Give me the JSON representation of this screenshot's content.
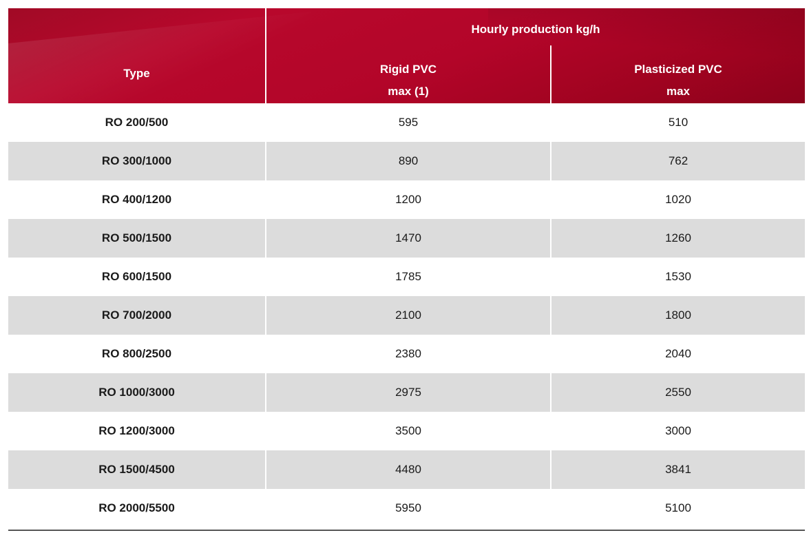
{
  "table": {
    "header": {
      "type_label": "Type",
      "group_label": "Hourly production kg/h",
      "rigid_line1": "Rigid PVC",
      "rigid_line2": "max (1)",
      "plast_line1": "Plasticized PVC",
      "plast_line2": "max"
    },
    "colors": {
      "header_red": "#b3052a",
      "shaded_row": "#dcdcdc"
    },
    "rows": [
      {
        "type": "RO 200/500",
        "rigid": "595",
        "plast": "510"
      },
      {
        "type": "RO 300/1000",
        "rigid": "890",
        "plast": "762"
      },
      {
        "type": "RO 400/1200",
        "rigid": "1200",
        "plast": "1020"
      },
      {
        "type": "RO 500/1500",
        "rigid": "1470",
        "plast": "1260"
      },
      {
        "type": "RO 600/1500",
        "rigid": "1785",
        "plast": "1530"
      },
      {
        "type": "RO 700/2000",
        "rigid": "2100",
        "plast": "1800"
      },
      {
        "type": "RO 800/2500",
        "rigid": "2380",
        "plast": "2040"
      },
      {
        "type": "RO 1000/3000",
        "rigid": "2975",
        "plast": "2550"
      },
      {
        "type": "RO 1200/3000",
        "rigid": "3500",
        "plast": "3000"
      },
      {
        "type": "RO 1500/4500",
        "rigid": "4480",
        "plast": "3841"
      },
      {
        "type": "RO 2000/5500",
        "rigid": "5950",
        "plast": "5100"
      }
    ]
  }
}
